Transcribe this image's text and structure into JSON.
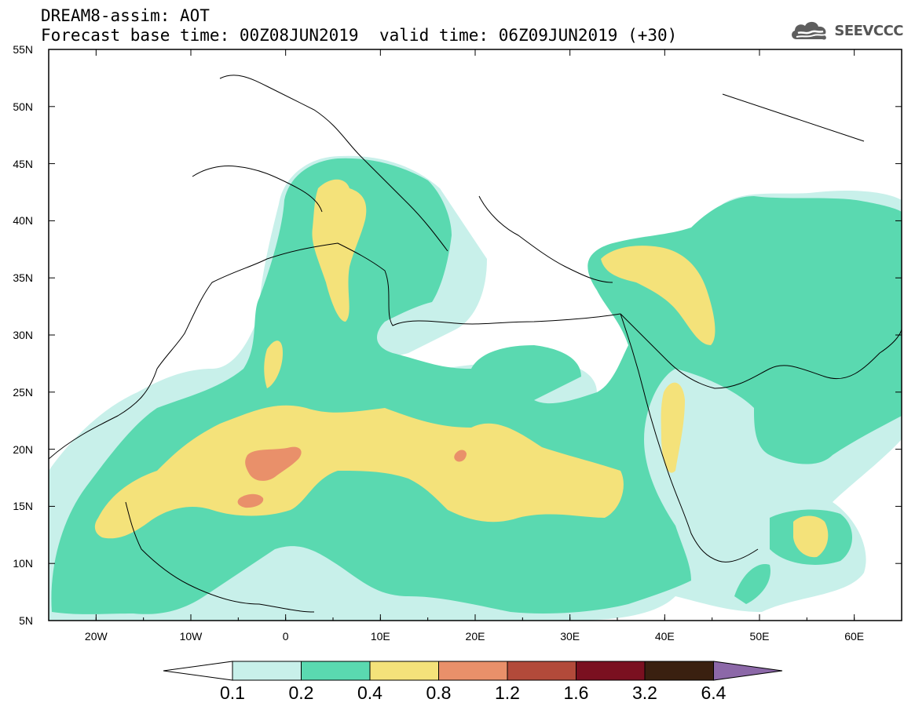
{
  "header": {
    "title": "DREAM8-assim: AOT",
    "base_time": "Forecast base time: 00Z08JUN2019",
    "valid_time": "valid time: 06Z09JUN2019 (+30)"
  },
  "logo": {
    "text": "SEEVCCC",
    "icon": "cloud-icon"
  },
  "map": {
    "lat_labels": [
      "55N",
      "50N",
      "45N",
      "40N",
      "35N",
      "30N",
      "25N",
      "20N",
      "15N",
      "10N",
      "5N"
    ],
    "lon_labels": [
      "20W",
      "10W",
      "0",
      "10E",
      "20E",
      "30E",
      "40E",
      "50E",
      "60E"
    ],
    "lon_range": [
      -25,
      65
    ],
    "lat_range": [
      5,
      55
    ]
  },
  "colorbar": {
    "labels": [
      "0.1",
      "0.2",
      "0.4",
      "0.8",
      "1.2",
      "1.6",
      "3.2",
      "6.4"
    ],
    "colors": [
      "#c8f0ea",
      "#5ad9b0",
      "#f4e27a",
      "#e9906a",
      "#b24a3a",
      "#7a1020",
      "#3a2010",
      "#8c68a8"
    ]
  }
}
